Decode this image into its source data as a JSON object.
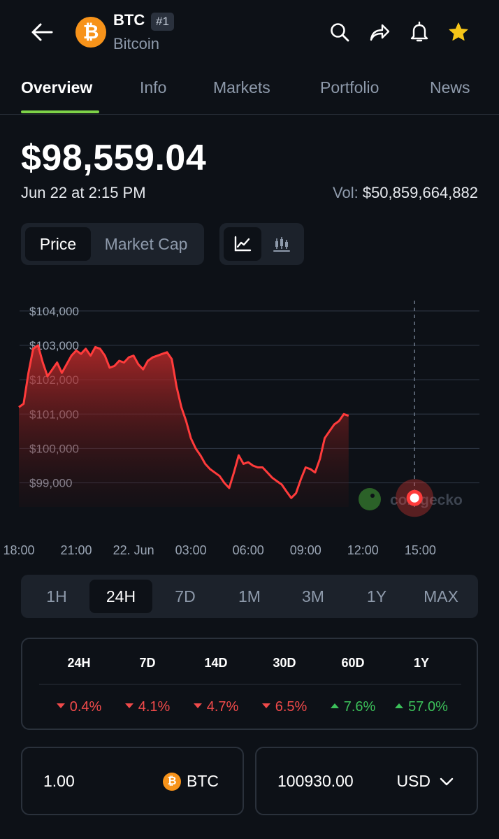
{
  "header": {
    "symbol": "BTC",
    "rank": "#1",
    "name": "Bitcoin",
    "logo_glyph": "₿",
    "logo_color": "#f7931a",
    "icons": [
      "back-arrow-icon",
      "search-icon",
      "share-icon",
      "bell-icon",
      "star-icon"
    ]
  },
  "tabs": [
    {
      "label": "Overview",
      "active": true
    },
    {
      "label": "Info"
    },
    {
      "label": "Markets"
    },
    {
      "label": "Portfolio"
    },
    {
      "label": "News"
    }
  ],
  "accent_color": "#7ed348",
  "price": {
    "value": "$98,559.04",
    "timestamp": "Jun 22 at 2:15 PM",
    "vol_label": "Vol:",
    "vol_value": "$50,859,664,882"
  },
  "chart_toggle": {
    "price_label": "Price",
    "market_cap_label": "Market Cap",
    "selected": "Price",
    "chart_types": [
      "line-chart-icon",
      "candlestick-icon"
    ]
  },
  "chart_data": {
    "type": "area",
    "series": [
      {
        "x": [
          0,
          0.25,
          0.5,
          0.75,
          1,
          1.25,
          1.5,
          1.75,
          2,
          2.25,
          2.5,
          2.75,
          3,
          3.25,
          3.5,
          3.75,
          4,
          4.25,
          4.5,
          4.75,
          5,
          5.25,
          5.5,
          5.75,
          6,
          6.25,
          6.5,
          6.75,
          7,
          7.25,
          7.5,
          7.75,
          8,
          8.25,
          8.5,
          8.75,
          9,
          9.25,
          9.5,
          9.75,
          10,
          10.25,
          10.5,
          10.75,
          11,
          11.25,
          11.5,
          11.75,
          12,
          12.25,
          12.5,
          12.75,
          13,
          13.25,
          13.5,
          13.75,
          14,
          14.25,
          14.5,
          14.75,
          15,
          15.25,
          15.5,
          15.75,
          16,
          16.25,
          16.5,
          16.75,
          17,
          17.25
        ],
        "y": [
          101200,
          101300,
          102200,
          102900,
          103000,
          102500,
          102100,
          102300,
          102500,
          102200,
          102450,
          102700,
          102850,
          102750,
          102900,
          102700,
          102950,
          102900,
          102700,
          102350,
          102400,
          102550,
          102500,
          102650,
          102700,
          102450,
          102300,
          102550,
          102650,
          102700,
          102750,
          102800,
          102600,
          101800,
          101200,
          100800,
          100300,
          100000,
          99800,
          99550,
          99400,
          99300,
          99200,
          99000,
          98850,
          99300,
          99800,
          99550,
          99600,
          99500,
          99450,
          99450,
          99300,
          99150,
          99050,
          98950,
          98750,
          98559,
          98700,
          99100,
          99450,
          99400,
          99300,
          99700,
          100300,
          100500,
          100700,
          100800,
          101000,
          100950
        ]
      }
    ],
    "x_ticks": [
      "18:00",
      "21:00",
      "22. Jun",
      "03:00",
      "06:00",
      "09:00",
      "12:00",
      "15:00"
    ],
    "x_tick_values": [
      0,
      3,
      6,
      9,
      12,
      15,
      18,
      21
    ],
    "y_ticks": [
      "$104,000",
      "$103,000",
      "$102,000",
      "$101,000",
      "$100,000",
      "$99,000"
    ],
    "y_tick_values": [
      104000,
      103000,
      102000,
      101000,
      100000,
      99000
    ],
    "ylim": [
      98300,
      104300
    ],
    "xlim": [
      0,
      24
    ],
    "marker": {
      "x": 20.7,
      "y": 98559
    },
    "cursor_x": 20.7,
    "line_color": "#ff3b3b",
    "grid": true,
    "watermark": "coingecko"
  },
  "ranges": [
    {
      "label": "1H"
    },
    {
      "label": "24H",
      "active": true
    },
    {
      "label": "7D"
    },
    {
      "label": "1M"
    },
    {
      "label": "3M"
    },
    {
      "label": "1Y"
    },
    {
      "label": "MAX"
    }
  ],
  "performance": [
    {
      "period": "24H",
      "value": "0.4%",
      "direction": "down"
    },
    {
      "period": "7D",
      "value": "4.1%",
      "direction": "down"
    },
    {
      "period": "14D",
      "value": "4.7%",
      "direction": "down"
    },
    {
      "period": "30D",
      "value": "6.5%",
      "direction": "down"
    },
    {
      "period": "60D",
      "value": "7.6%",
      "direction": "up"
    },
    {
      "period": "1Y",
      "value": "57.0%",
      "direction": "up"
    }
  ],
  "status_colors": {
    "down": "#f04a4a",
    "up": "#3cc15a"
  },
  "converter": {
    "from_value": "1.00",
    "from_unit": "BTC",
    "to_value": "100930.00",
    "to_unit": "USD"
  }
}
